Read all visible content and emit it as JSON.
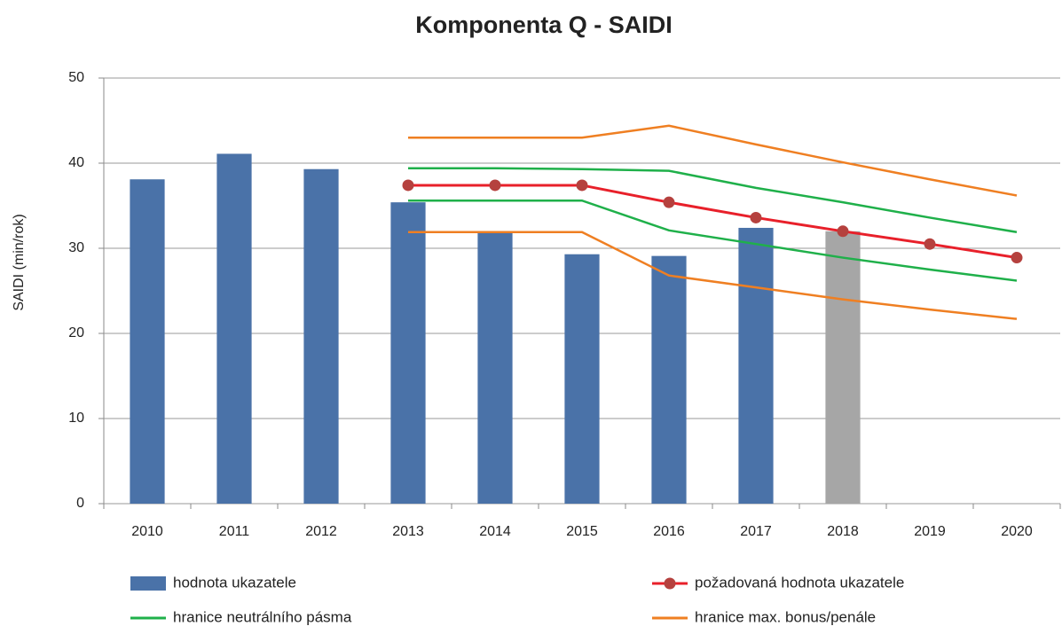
{
  "chart_data": {
    "type": "bar",
    "title": "Komponenta Q - SAIDI",
    "y_label": "SAIDI (min/rok)",
    "categories": [
      "2010",
      "2011",
      "2012",
      "2013",
      "2014",
      "2015",
      "2016",
      "2017",
      "2018",
      "2019",
      "2020"
    ],
    "ylim": [
      0,
      50
    ],
    "yticks": [
      0,
      10,
      20,
      30,
      40,
      50
    ],
    "grid": true,
    "series": [
      {
        "type": "bar",
        "name": "hodnota ukazatele",
        "color": "#4a72a8",
        "colors": [
          "#4a72a8",
          "#4a72a8",
          "#4a72a8",
          "#4a72a8",
          "#4a72a8",
          "#4a72a8",
          "#4a72a8",
          "#4a72a8",
          "#a6a6a6",
          "#4a72a8",
          "#4a72a8"
        ],
        "values": [
          38.1,
          41.1,
          39.3,
          35.4,
          31.8,
          29.3,
          29.1,
          32.4,
          32.0,
          null,
          null
        ]
      },
      {
        "type": "line",
        "name": "požadovaná hodnota ukazatele",
        "color": "#e8202a",
        "marker_color": "#b5413e",
        "values": [
          null,
          null,
          null,
          37.4,
          37.4,
          37.4,
          35.4,
          33.6,
          32.0,
          30.5,
          28.9
        ]
      },
      {
        "type": "band",
        "name": "hranice neutrálního pásma",
        "color": "#1fb04a",
        "upper": [
          null,
          null,
          null,
          39.4,
          39.4,
          39.3,
          39.1,
          37.1,
          35.4,
          33.6,
          31.9
        ],
        "lower": [
          null,
          null,
          null,
          35.6,
          35.6,
          35.6,
          32.1,
          30.5,
          28.9,
          27.5,
          26.2
        ]
      },
      {
        "type": "band",
        "name": "hranice max. bonus/penále",
        "color": "#ef7f22",
        "upper": [
          null,
          null,
          null,
          43.0,
          43.0,
          43.0,
          44.4,
          42.2,
          40.1,
          38.1,
          36.2
        ],
        "lower": [
          null,
          null,
          null,
          31.9,
          31.9,
          31.9,
          26.8,
          25.4,
          24.0,
          22.8,
          21.7
        ]
      }
    ]
  }
}
